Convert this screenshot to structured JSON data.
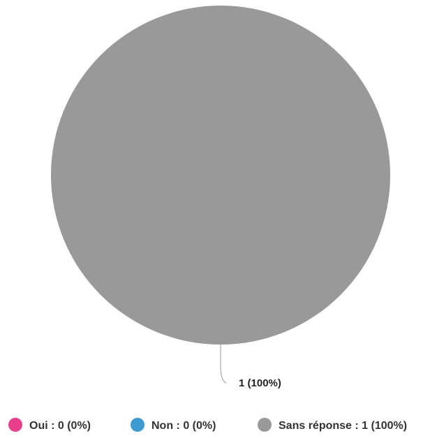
{
  "chart_data": {
    "type": "pie",
    "categories": [
      "Oui",
      "Non",
      "Sans réponse"
    ],
    "values": [
      0,
      0,
      1
    ],
    "percentages": [
      0,
      0,
      100
    ],
    "colors": [
      "#e83e8c",
      "#3c9bd1",
      "#999999"
    ],
    "legend_labels": [
      "Oui : 0 (0%)",
      "Non : 0 (0%)",
      "Sans réponse : 1 (100%)"
    ],
    "data_labels": [
      "",
      "",
      "1 (100%)"
    ],
    "legend_position": "bottom"
  }
}
